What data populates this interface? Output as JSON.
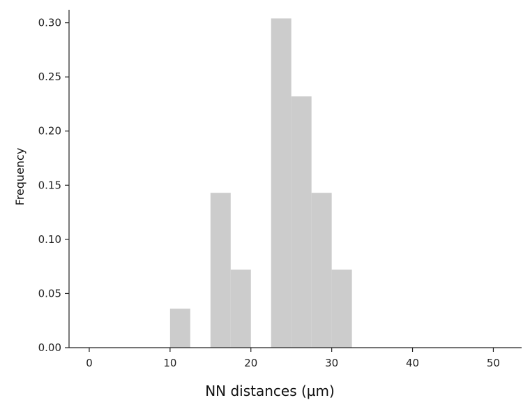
{
  "chart_data": {
    "type": "bar",
    "title": "",
    "xlabel": "NN distances (µm)",
    "ylabel": "Frequency",
    "xlim": [
      -2.5,
      53.5
    ],
    "ylim": [
      0,
      0.312
    ],
    "xticks": [
      0,
      10,
      20,
      30,
      40,
      50
    ],
    "yticks": [
      0.0,
      0.05,
      0.1,
      0.15,
      0.2,
      0.25,
      0.3
    ],
    "ytick_labels": [
      "0.00",
      "0.05",
      "0.10",
      "0.15",
      "0.20",
      "0.25",
      "0.30"
    ],
    "grid": false,
    "bar_color": "#cccccc",
    "bins": [
      {
        "x0": 10.0,
        "x1": 12.5,
        "value": 0.036
      },
      {
        "x0": 15.0,
        "x1": 17.5,
        "value": 0.143
      },
      {
        "x0": 17.5,
        "x1": 20.0,
        "value": 0.072
      },
      {
        "x0": 22.5,
        "x1": 25.0,
        "value": 0.304
      },
      {
        "x0": 25.0,
        "x1": 27.5,
        "value": 0.232
      },
      {
        "x0": 27.5,
        "x1": 30.0,
        "value": 0.143
      },
      {
        "x0": 30.0,
        "x1": 32.5,
        "value": 0.072
      }
    ]
  }
}
